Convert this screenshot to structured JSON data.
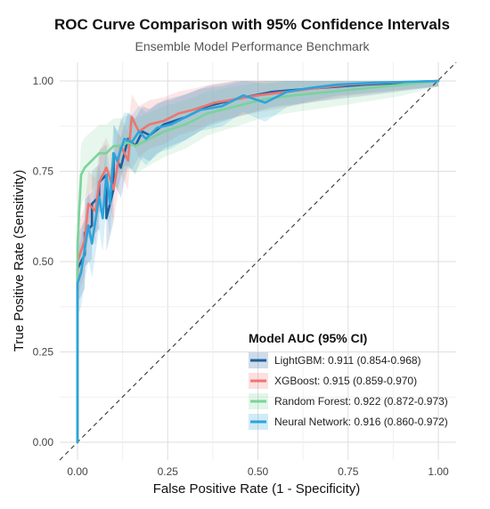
{
  "chart_data": {
    "type": "line",
    "title": "ROC Curve Comparison with 95% Confidence Intervals",
    "subtitle": "Ensemble Model Performance Benchmark",
    "xlabel": "False Positive Rate (1 - Specificity)",
    "ylabel": "True Positive Rate (Sensitivity)",
    "xlim": [
      0,
      1
    ],
    "ylim": [
      0,
      1
    ],
    "x_ticks": [
      "0.00",
      "0.25",
      "0.50",
      "0.75",
      "1.00"
    ],
    "y_ticks": [
      "0.00",
      "0.25",
      "0.50",
      "0.75",
      "1.00"
    ],
    "grid": true,
    "diagonal_reference": true,
    "legend": {
      "title": "Model AUC (95% CI)",
      "position": "bottom-right"
    },
    "series": [
      {
        "name": "LightGBM: 0.911 (0.854-0.968)",
        "color": "#1f5f9e",
        "fpr": [
          0,
          0,
          0.02,
          0.02,
          0.04,
          0.04,
          0.06,
          0.06,
          0.08,
          0.08,
          0.1,
          0.1,
          0.12,
          0.14,
          0.16,
          0.18,
          0.2,
          0.24,
          0.3,
          0.36,
          0.44,
          0.54,
          0.66,
          0.8,
          1.0
        ],
        "tpr": [
          0,
          0.48,
          0.52,
          0.58,
          0.6,
          0.66,
          0.68,
          0.72,
          0.74,
          0.62,
          0.7,
          0.8,
          0.76,
          0.84,
          0.82,
          0.86,
          0.85,
          0.88,
          0.9,
          0.93,
          0.95,
          0.97,
          0.98,
          0.99,
          1.0
        ]
      },
      {
        "name": "XGBoost: 0.915 (0.859-0.970)",
        "color": "#f07470",
        "fpr": [
          0,
          0,
          0.02,
          0.03,
          0.05,
          0.06,
          0.08,
          0.1,
          0.12,
          0.14,
          0.15,
          0.17,
          0.2,
          0.24,
          0.28,
          0.32,
          0.38,
          0.44,
          0.5,
          0.58,
          0.66,
          0.75,
          0.85,
          1.0
        ],
        "tpr": [
          0,
          0.5,
          0.56,
          0.66,
          0.64,
          0.72,
          0.76,
          0.7,
          0.82,
          0.78,
          0.9,
          0.86,
          0.88,
          0.89,
          0.91,
          0.92,
          0.94,
          0.95,
          0.96,
          0.97,
          0.98,
          0.99,
          0.995,
          1.0
        ]
      },
      {
        "name": "Random Forest: 0.922 (0.872-0.973)",
        "color": "#7ad39a",
        "fpr": [
          0,
          0,
          0.01,
          0.02,
          0.04,
          0.06,
          0.08,
          0.1,
          0.12,
          0.14,
          0.16,
          0.2,
          0.24,
          0.3,
          0.36,
          0.44,
          0.52,
          0.6,
          0.7,
          0.8,
          0.9,
          1.0
        ],
        "tpr": [
          0,
          0.55,
          0.74,
          0.76,
          0.78,
          0.8,
          0.8,
          0.82,
          0.82,
          0.83,
          0.82,
          0.84,
          0.86,
          0.88,
          0.91,
          0.93,
          0.95,
          0.96,
          0.97,
          0.98,
          0.99,
          1.0
        ]
      },
      {
        "name": "Neural Network: 0.916 (0.860-0.972)",
        "color": "#2aa5dc",
        "fpr": [
          0,
          0,
          0.01,
          0.03,
          0.04,
          0.06,
          0.07,
          0.08,
          0.09,
          0.1,
          0.11,
          0.13,
          0.15,
          0.17,
          0.19,
          0.22,
          0.26,
          0.3,
          0.34,
          0.4,
          0.46,
          0.52,
          0.58,
          0.64,
          0.72,
          0.82,
          1.0
        ],
        "tpr": [
          0,
          0.44,
          0.47,
          0.6,
          0.55,
          0.68,
          0.62,
          0.74,
          0.66,
          0.8,
          0.78,
          0.84,
          0.83,
          0.86,
          0.84,
          0.87,
          0.88,
          0.9,
          0.92,
          0.93,
          0.96,
          0.94,
          0.97,
          0.98,
          0.99,
          0.995,
          1.0
        ]
      }
    ]
  }
}
